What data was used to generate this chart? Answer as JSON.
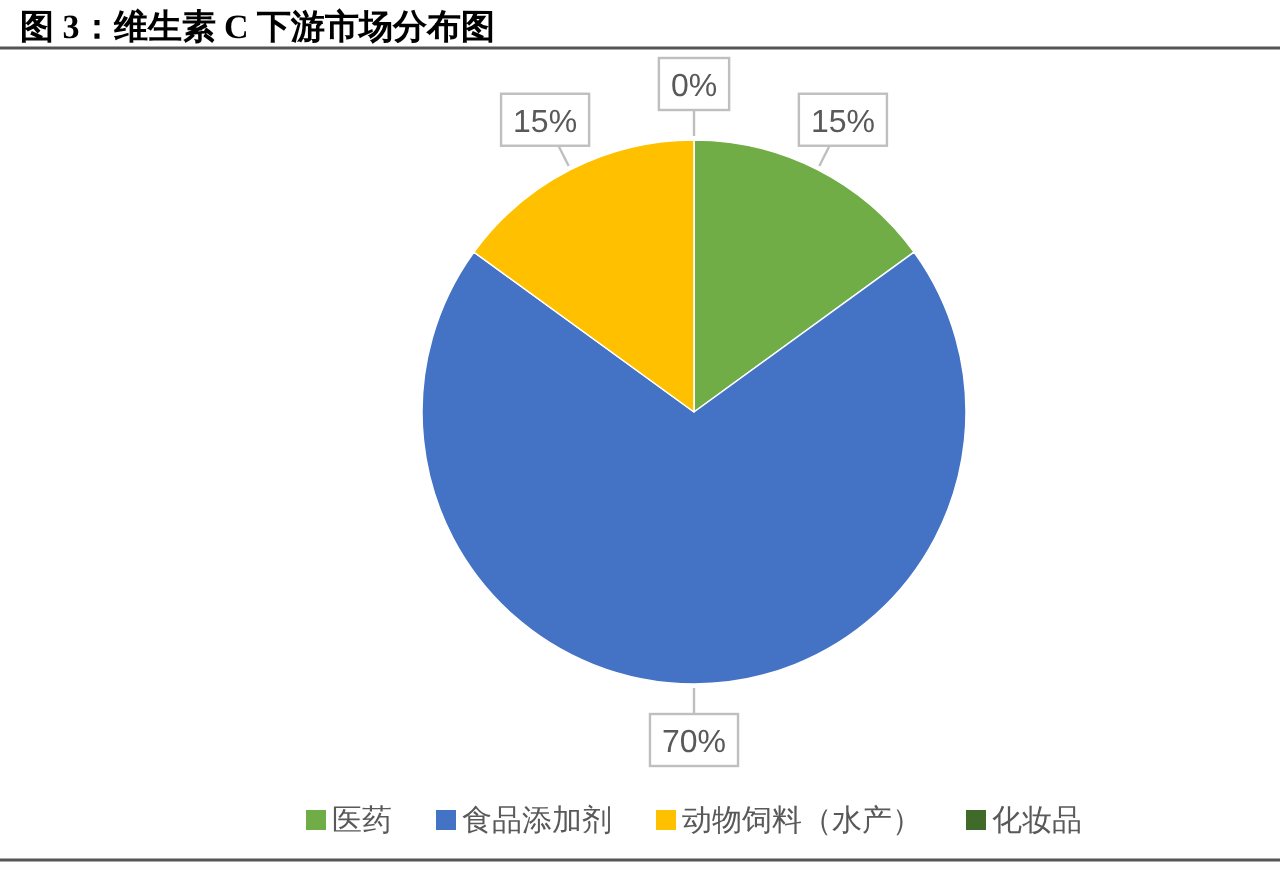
{
  "chart_data": {
    "type": "pie",
    "title": "图 3：维生素 C 下游市场分布图",
    "categories": [
      "医药",
      "食品添加剂",
      "动物饲料（水产）",
      "化妆品"
    ],
    "values": [
      15,
      70,
      15,
      0
    ],
    "colors": [
      "#70ad47",
      "#4472c4",
      "#ffc000",
      "#3f6a2a"
    ],
    "value_labels": [
      "15%",
      "70%",
      "15%",
      "0%"
    ],
    "legend": "bottom"
  }
}
